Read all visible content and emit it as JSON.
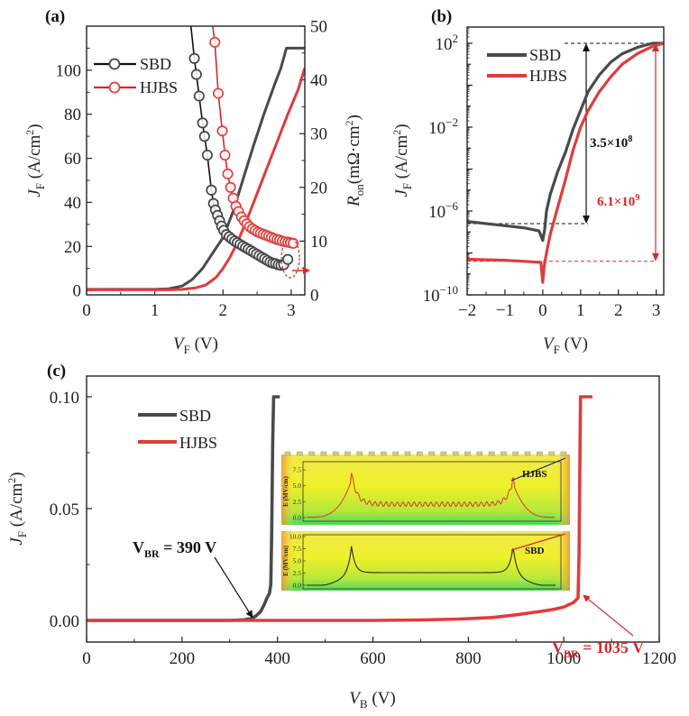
{
  "colors": {
    "sbd": "#4a4a4a",
    "hjbs": "#e03c3c",
    "black": "#111111",
    "red_text": "#d42a2a"
  },
  "chart_data": [
    {
      "id": "a",
      "panel_label": "(a)",
      "type": "line",
      "xlabel_main": "V",
      "xlabel_sub": "F",
      "xlabel_unit": " (V)",
      "ylabel_main": "J",
      "ylabel_sub": "F",
      "ylabel_unit": " (A/cm",
      "ylabel_sup": "2",
      "ylabel_close": ")",
      "y2label_main": "R",
      "y2label_sub": "on",
      "y2label_unit": "(mΩ·cm",
      "y2label_sup": "2",
      "y2label_close": ")",
      "xlim": [
        0,
        3.2
      ],
      "ylim": [
        -2,
        120
      ],
      "y2lim": [
        0,
        50
      ],
      "xticks": [
        "0",
        "1",
        "2",
        "3"
      ],
      "yticks": [
        "0",
        "20",
        "40",
        "60",
        "80",
        "100"
      ],
      "y2ticks": [
        "0",
        "10",
        "20",
        "30",
        "40",
        "50"
      ],
      "legend": [
        {
          "name": "SBD",
          "marker": "open-circle"
        },
        {
          "name": "HJBS",
          "marker": "open-circle"
        }
      ],
      "legend_position": "upper-left",
      "series_jv": [
        {
          "name": "SBD",
          "x": [
            0,
            1.0,
            1.2,
            1.4,
            1.55,
            1.7,
            1.85,
            2.0,
            2.15,
            2.3,
            2.45,
            2.6,
            2.75,
            2.85,
            2.93,
            3.2
          ],
          "y": [
            0.5,
            0.5,
            0.8,
            2,
            5,
            10,
            17,
            24,
            36,
            51,
            66,
            80,
            93,
            101,
            110,
            110
          ]
        },
        {
          "name": "HJBS",
          "x": [
            0,
            1.2,
            1.4,
            1.6,
            1.75,
            1.9,
            2.0,
            2.1,
            2.2,
            2.35,
            2.5,
            2.65,
            2.8,
            2.95,
            3.1,
            3.2
          ],
          "y": [
            0.3,
            0.3,
            0.5,
            1.2,
            2.5,
            6,
            10,
            15,
            21,
            32,
            44,
            56,
            68,
            80,
            91,
            101
          ]
        }
      ],
      "series_ron": [
        {
          "name": "SBD",
          "x": [
            1.58,
            1.61,
            1.65,
            1.7,
            1.73,
            1.77,
            1.83,
            1.86,
            1.89,
            1.92,
            1.95,
            1.98,
            2.01,
            2.05,
            2.09,
            2.13,
            2.17,
            2.21,
            2.25,
            2.29,
            2.33,
            2.37,
            2.41,
            2.45,
            2.49,
            2.53,
            2.57,
            2.61,
            2.65,
            2.69,
            2.73,
            2.77,
            2.81,
            2.85,
            2.89,
            2.95
          ],
          "y": [
            44,
            41,
            37,
            32,
            29.5,
            26,
            19.5,
            17,
            15.8,
            14.8,
            13.8,
            12.8,
            12,
            11.2,
            10.8,
            10.4,
            10,
            9.7,
            9.4,
            9.1,
            8.8,
            8.5,
            8.2,
            7.9,
            7.6,
            7.3,
            7.0,
            6.7,
            6.4,
            6.1,
            5.9,
            5.8,
            5.6,
            5.5,
            5.6,
            6.6
          ],
          "steep_top": [
            1.53,
            50
          ]
        },
        {
          "name": "HJBS",
          "x": [
            1.88,
            1.93,
            1.99,
            2.03,
            2.07,
            2.11,
            2.15,
            2.19,
            2.23,
            2.27,
            2.31,
            2.35,
            2.39,
            2.43,
            2.47,
            2.51,
            2.55,
            2.59,
            2.63,
            2.67,
            2.71,
            2.75,
            2.79,
            2.83,
            2.87,
            2.91,
            2.95,
            2.99,
            3.03
          ],
          "y": [
            47,
            37.5,
            30.5,
            26,
            22.5,
            20,
            18,
            16.5,
            15.5,
            14.5,
            13.8,
            13.2,
            12.7,
            12.3,
            12,
            11.7,
            11.5,
            11.3,
            11.1,
            10.9,
            10.7,
            10.5,
            10.3,
            10.2,
            10.0,
            9.9,
            9.8,
            9.7,
            9.6
          ],
          "steep_top": [
            1.85,
            50
          ]
        }
      ],
      "annotation": "dashed ellipse around curve ends with red arrow pointing to right axis"
    },
    {
      "id": "b",
      "panel_label": "(b)",
      "type": "line",
      "yscale": "log",
      "xlabel_main": "V",
      "xlabel_sub": "F",
      "xlabel_unit": " (V)",
      "ylabel_main": "J",
      "ylabel_sub": "F",
      "ylabel_unit": " (A/cm",
      "ylabel_sup": "2",
      "ylabel_close": ")",
      "xlim": [
        -2,
        3.2
      ],
      "ylim_exp": [
        -10,
        3
      ],
      "xticks": [
        "−2",
        "−1",
        "0",
        "1",
        "2",
        "3"
      ],
      "yticks": [
        {
          "base": "10",
          "exp": "2"
        },
        {
          "base": "10",
          "exp": "−2"
        },
        {
          "base": "10",
          "exp": "−6"
        },
        {
          "base": "10",
          "exp": "−10"
        }
      ],
      "legend": [
        {
          "name": "SBD"
        },
        {
          "name": "HJBS"
        }
      ],
      "legend_position": "upper-left",
      "series": [
        {
          "name": "SBD",
          "x": [
            -2,
            -1,
            -0.5,
            -0.1,
            0,
            0.05,
            0.1,
            0.2,
            0.4,
            0.6,
            0.8,
            1.0,
            1.2,
            1.5,
            1.8,
            2.1,
            2.5,
            2.9,
            3.2
          ],
          "log10y": [
            -6.5,
            -6.7,
            -6.8,
            -6.95,
            -7.4,
            -6.9,
            -6.0,
            -5.2,
            -4.1,
            -3.2,
            -2.1,
            -1.2,
            -0.3,
            0.5,
            1.1,
            1.5,
            1.8,
            2.0,
            2.0
          ]
        },
        {
          "name": "HJBS",
          "x": [
            -2,
            -1,
            -0.5,
            -0.05,
            0,
            0.04,
            0.1,
            0.2,
            0.4,
            0.6,
            0.8,
            1.0,
            1.2,
            1.5,
            1.8,
            2.1,
            2.5,
            2.9,
            3.2
          ],
          "log10y": [
            -8.3,
            -8.35,
            -8.4,
            -8.45,
            -9.4,
            -8.6,
            -8.0,
            -7.1,
            -5.8,
            -4.5,
            -3.1,
            -2.0,
            -1.2,
            -0.3,
            0.4,
            1.0,
            1.5,
            1.85,
            2.0
          ]
        }
      ],
      "annotations": [
        {
          "text_base": "3.5×10",
          "text_exp": "8",
          "color": "black"
        },
        {
          "text_base": "6.1×10",
          "text_exp": "9",
          "color": "red"
        }
      ],
      "ref_levels_log10": {
        "top": 2,
        "sbd_off": -6.6,
        "hjbs_off": -8.4
      }
    },
    {
      "id": "c",
      "panel_label": "(c)",
      "type": "line",
      "xlabel_main": "V",
      "xlabel_sub": "B",
      "xlabel_unit": " (V)",
      "ylabel_main": "J",
      "ylabel_sub": "F",
      "ylabel_unit": " (A/cm",
      "ylabel_sup": "2",
      "ylabel_close": ")",
      "xlim": [
        0,
        1200
      ],
      "ylim": [
        -0.0065,
        0.103
      ],
      "xticks": [
        "0",
        "200",
        "400",
        "600",
        "800",
        "1000",
        "1200"
      ],
      "yticks": [
        "0.00",
        "0.05",
        "0.10"
      ],
      "legend": [
        {
          "name": "SBD"
        },
        {
          "name": "HJBS"
        }
      ],
      "legend_position": "upper-left",
      "series": [
        {
          "name": "SBD",
          "x": [
            0,
            300,
            330,
            345,
            355,
            365,
            372,
            378,
            383,
            386,
            388,
            390,
            392,
            405
          ],
          "y": [
            0,
            0,
            0.0003,
            0.0008,
            0.002,
            0.004,
            0.007,
            0.01,
            0.012,
            0.016,
            0.04,
            0.08,
            0.1,
            0.1
          ]
        },
        {
          "name": "HJBS",
          "x": [
            0,
            600,
            700,
            780,
            850,
            900,
            950,
            980,
            1000,
            1020,
            1030,
            1032,
            1035,
            1040,
            1060
          ],
          "y": [
            0,
            0,
            0.0002,
            0.0006,
            0.0013,
            0.0025,
            0.004,
            0.005,
            0.006,
            0.008,
            0.01,
            0.03,
            0.1,
            0.1,
            0.1
          ]
        }
      ],
      "annotations": [
        {
          "label": "V",
          "sub": "BR",
          "value": " = 390 V",
          "color": "black",
          "target_x": 350,
          "target_y": 0.001
        },
        {
          "label": "V",
          "sub": "BR",
          "value": " = 1035 V",
          "color": "red",
          "target_x": 1035,
          "target_y": 0.011
        }
      ],
      "inset": {
        "top": {
          "name": "HJBS",
          "ylabel": "E (MV/cm)",
          "yticks": [
            "0.0",
            "2.5",
            "5.0",
            "7.5"
          ],
          "ylim": [
            0,
            8.5
          ]
        },
        "bottom": {
          "name": "SBD",
          "ylabel": "E (MV/cm)",
          "yticks": [
            "0.0",
            "2.5",
            "5.0",
            "7.5",
            "10.0"
          ],
          "ylim": [
            0,
            10
          ]
        }
      }
    }
  ]
}
